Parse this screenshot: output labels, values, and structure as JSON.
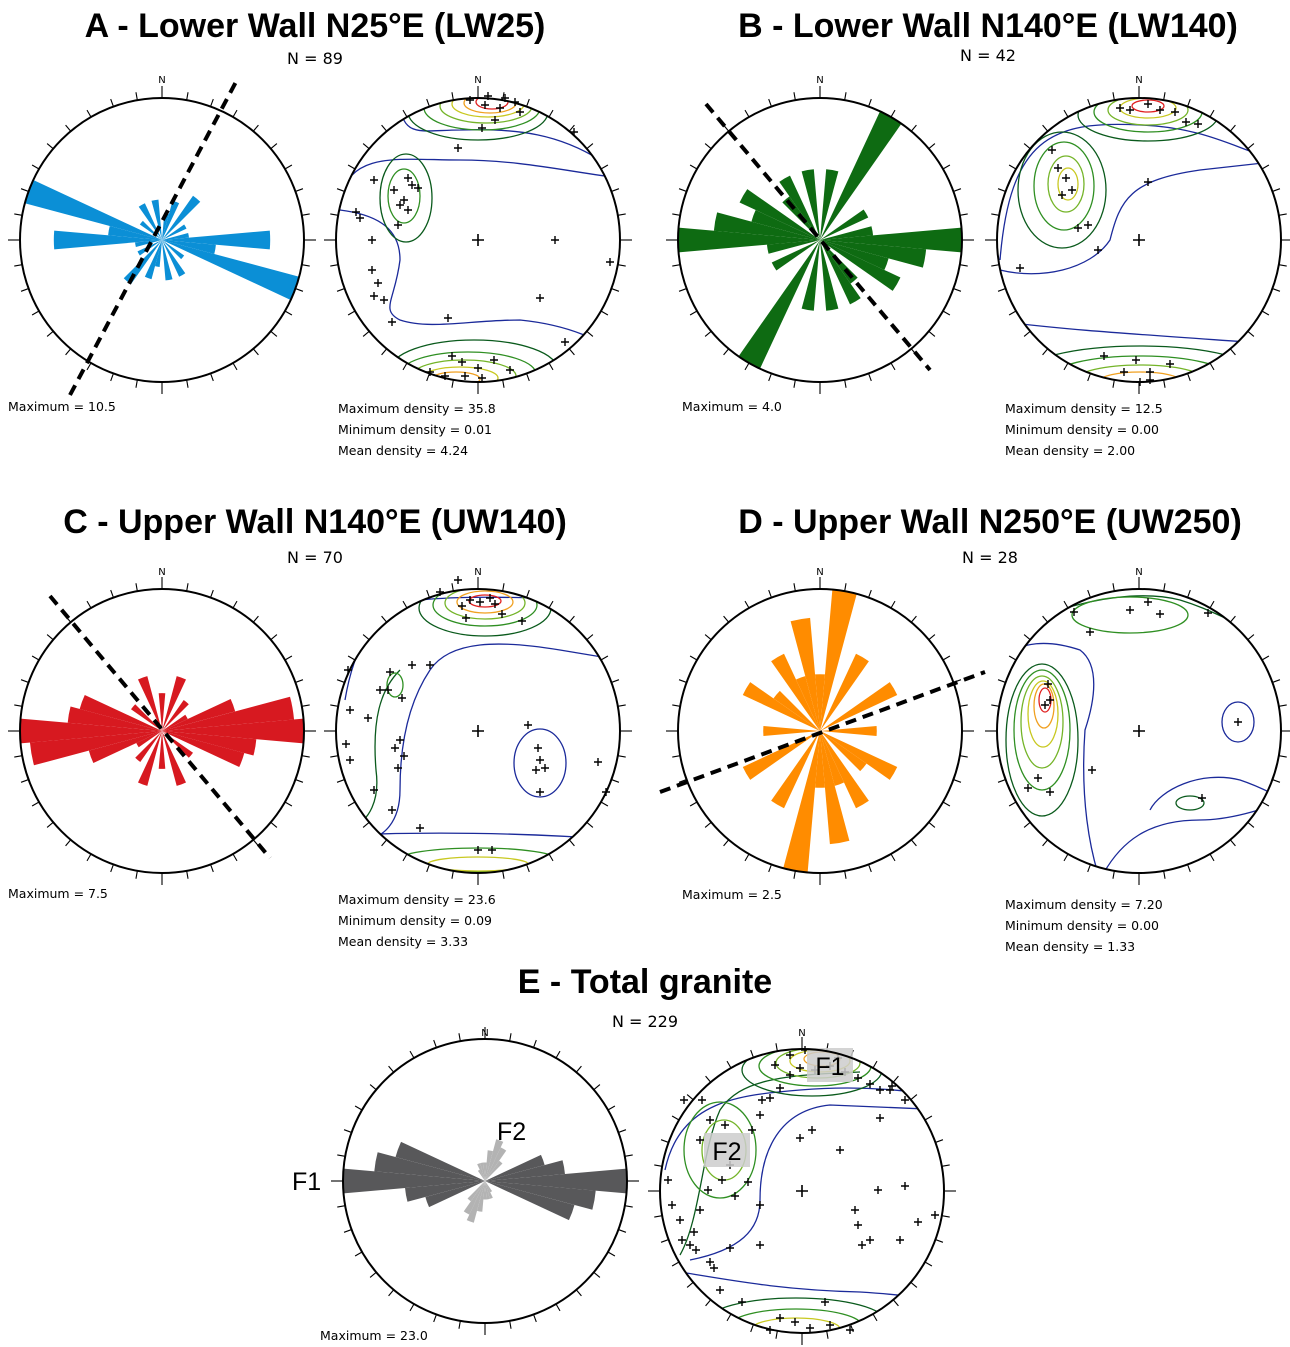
{
  "panels": [
    {
      "title": "A - Lower Wall N25°E (LW25)",
      "n_label": "N = 89",
      "rose": {
        "color": "#0b8fd6",
        "north_label": "N",
        "maximum_label": "Maximum = 10.5",
        "petals": [
          [
            100,
            4
          ],
          [
            60,
            2
          ],
          [
            150,
            3
          ],
          [
            130,
            2
          ],
          [
            20,
            3
          ],
          [
            40,
            4
          ],
          [
            170,
            3
          ],
          [
            10,
            2
          ],
          [
            110,
            10.5
          ],
          [
            90,
            8
          ],
          [
            80,
            2
          ]
        ],
        "wall_strike_deg": 25
      },
      "stereonet": {
        "north_label": "N",
        "stats": [
          "Maximum density = 35.8",
          "Minimum density = 0.01",
          "Mean density = 4.24"
        ]
      }
    },
    {
      "title": "B - Lower Wall N140°E (LW140)",
      "n_label": "N = 42",
      "rose": {
        "color": "#0e6b12",
        "north_label": "N",
        "maximum_label": "Maximum = 4.0",
        "petals": [
          [
            30,
            4
          ],
          [
            120,
            2.5
          ],
          [
            110,
            2
          ],
          [
            60,
            1.5
          ],
          [
            80,
            1.5
          ],
          [
            90,
            4
          ],
          [
            100,
            3
          ],
          [
            170,
            2
          ],
          [
            10,
            2
          ],
          [
            140,
            1.5
          ],
          [
            150,
            2
          ]
        ],
        "wall_strike_deg": 140
      },
      "stereonet": {
        "north_label": "N",
        "stats": [
          "Maximum density = 12.5",
          "Minimum density = 0.00",
          "Mean density = 2.00"
        ]
      }
    },
    {
      "title": "C - Upper Wall N140°E (UW140)",
      "n_label": "N = 70",
      "rose": {
        "color": "#d71920",
        "north_label": "N",
        "maximum_label": "Maximum = 7.5",
        "petals": [
          [
            100,
            5
          ],
          [
            80,
            7
          ],
          [
            90,
            7.5
          ],
          [
            20,
            3
          ],
          [
            160,
            3
          ],
          [
            130,
            2
          ],
          [
            40,
            2
          ],
          [
            60,
            1.5
          ],
          [
            70,
            4
          ],
          [
            110,
            4.5
          ],
          [
            0,
            2
          ]
        ],
        "wall_strike_deg": 140
      },
      "stereonet": {
        "north_label": "N",
        "stats": [
          "Maximum density = 23.6",
          "Minimum density = 0.09",
          "Mean density = 3.33"
        ]
      }
    },
    {
      "title": "D - Upper Wall N250°E (UW250)",
      "n_label": "N = 28",
      "rose": {
        "color": "#ff8c00",
        "north_label": "N",
        "maximum_label": "Maximum = 2.5",
        "petals": [
          [
            10,
            2.5
          ],
          [
            170,
            2
          ],
          [
            150,
            1.5
          ],
          [
            30,
            1.5
          ],
          [
            60,
            1.5
          ],
          [
            120,
            1.5
          ],
          [
            90,
            1
          ],
          [
            160,
            1
          ],
          [
            0,
            1
          ],
          [
            130,
            1
          ]
        ],
        "wall_strike_deg": 70
      },
      "stereonet": {
        "north_label": "N",
        "stats": [
          "Maximum density = 7.20",
          "Minimum density = 0.00",
          "Mean density = 1.33"
        ]
      }
    },
    {
      "title": "E - Total granite",
      "n_label": "N = 229",
      "rose": {
        "color": "#58585a",
        "secondary_color": "#b3b3b3",
        "north_label": "N",
        "maximum_label": "Maximum = 23.0",
        "petals": [
          [
            90,
            23
          ],
          [
            100,
            18
          ],
          [
            80,
            13
          ],
          [
            110,
            15
          ],
          [
            70,
            10
          ]
        ],
        "secondary_petals": [
          [
            20,
            7
          ],
          [
            30,
            6
          ],
          [
            10,
            5
          ],
          [
            40,
            4
          ],
          [
            160,
            3
          ],
          [
            170,
            3
          ],
          [
            150,
            2
          ],
          [
            0,
            3
          ]
        ],
        "set_labels": [
          "F1",
          "F2"
        ]
      },
      "stereonet": {
        "north_label": "N",
        "set_labels": [
          "F1",
          "F2"
        ]
      }
    }
  ]
}
